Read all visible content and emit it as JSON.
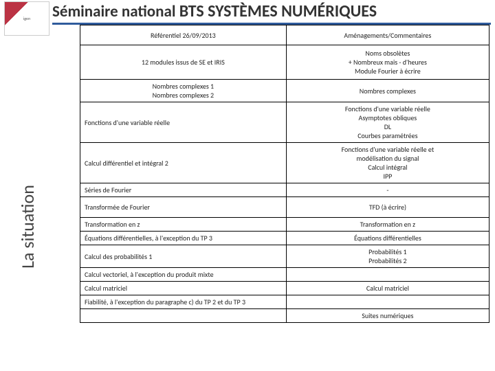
{
  "header": {
    "prefix": "Séminaire national ",
    "main": "BTS SYSTÈMES NUMÉRIQUES"
  },
  "sidebar_label": "La situation",
  "logo_text": "igen",
  "columns": {
    "left_header": "Référentiel 26/09/2013",
    "right_header": "Aménagements/Commentaires"
  },
  "rows": [
    {
      "left": "12 modules issus de SE et IRIS",
      "left_align": "center",
      "left_pad": 18,
      "right": "Noms obsolètes\n+ Nombreux mais - d'heures\nModule Fourier à écrire",
      "right_align": "center"
    },
    {
      "left": "Nombres complexes 1\nNombres complexes 2",
      "left_align": "center",
      "right": "Nombres complexes",
      "right_align": "center"
    },
    {
      "left": "Fonctions d'une variable réelle",
      "left_align": "left",
      "left_pad": 22,
      "right": "Fonctions d'une variable réelle\nAsymptotes obliques\nDL\nCourbes paramétrées",
      "right_align": "center"
    },
    {
      "left": "Calcul différentiel et intégral 2",
      "left_align": "left",
      "left_pad": 16,
      "right": "Fonctions d'une variable réelle et\nmodélisation du signal\nCalcul intégral\nIPP",
      "right_align": "center"
    },
    {
      "left": "Séries de Fourier",
      "left_align": "left",
      "right": "-",
      "right_align": "center"
    },
    {
      "left": "Transformée de Fourier",
      "left_align": "left",
      "left_pad": 8,
      "right": "TFD (à écrire)",
      "right_align": "center"
    },
    {
      "left": "Transformation en z",
      "left_align": "left",
      "right": "Transformation en z",
      "right_align": "center"
    },
    {
      "left": "Équations différentielles, à l'exception du TP 3",
      "left_align": "left",
      "right": "Équations différentielles",
      "right_align": "center"
    },
    {
      "left": "Calcul des probabilités 1",
      "left_align": "left",
      "left_pad": 4,
      "right": "Probabilités 1\nProbabilités 2",
      "right_align": "center"
    },
    {
      "left": "Calcul vectoriel, à l'exception du produit mixte",
      "left_align": "left",
      "right": "",
      "right_align": "center"
    },
    {
      "left": "Calcul matriciel",
      "left_align": "left",
      "right": "Calcul matriciel",
      "right_align": "center"
    },
    {
      "left": "Fiabilité, à l'exception du paragraphe c) du TP 2 et du TP 3",
      "left_align": "left",
      "right": "",
      "right_align": "center"
    },
    {
      "left": "",
      "left_align": "left",
      "right": "Suites numériques",
      "right_align": "center"
    }
  ]
}
